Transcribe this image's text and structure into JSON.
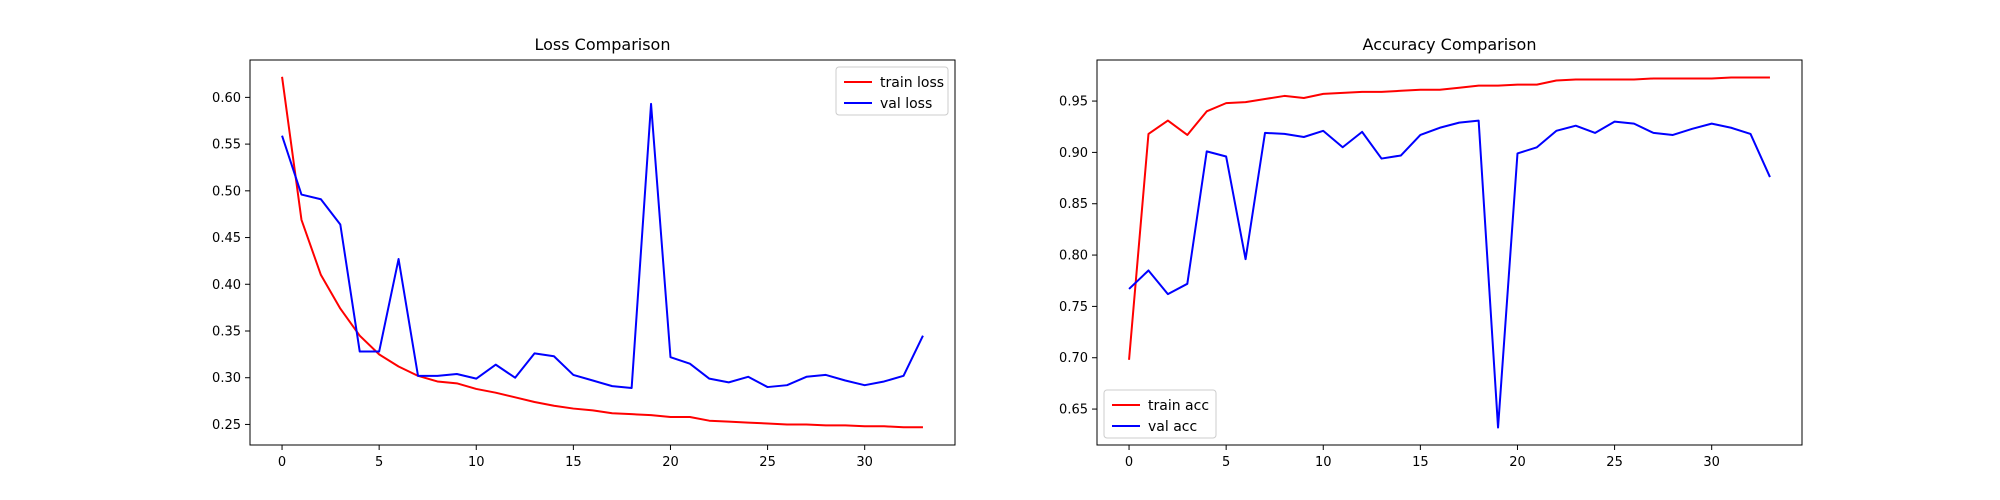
{
  "chart_data": [
    {
      "type": "line",
      "title": "Loss Comparison",
      "xlabel": "",
      "ylabel": "",
      "xlim": [
        -1.65,
        34.65
      ],
      "ylim": [
        0.228,
        0.64
      ],
      "xticks": [
        0,
        5,
        10,
        15,
        20,
        25,
        30
      ],
      "yticks": [
        0.25,
        0.3,
        0.35,
        0.4,
        0.45,
        0.5,
        0.55,
        0.6
      ],
      "ytick_labels": [
        "0.25",
        "0.30",
        "0.35",
        "0.40",
        "0.45",
        "0.50",
        "0.55",
        "0.60"
      ],
      "xtick_labels": [
        "0",
        "5",
        "10",
        "15",
        "20",
        "25",
        "30"
      ],
      "grid": false,
      "legend_loc": "upper right",
      "x": [
        0,
        1,
        2,
        3,
        4,
        5,
        6,
        7,
        8,
        9,
        10,
        11,
        12,
        13,
        14,
        15,
        16,
        17,
        18,
        19,
        20,
        21,
        22,
        23,
        24,
        25,
        26,
        27,
        28,
        29,
        30,
        31,
        32,
        33
      ],
      "series": [
        {
          "name": "train loss",
          "color": "#ff0000",
          "values": [
            0.622,
            0.469,
            0.41,
            0.374,
            0.345,
            0.325,
            0.312,
            0.302,
            0.296,
            0.294,
            0.288,
            0.284,
            0.279,
            0.274,
            0.27,
            0.267,
            0.265,
            0.262,
            0.261,
            0.26,
            0.258,
            0.258,
            0.254,
            0.253,
            0.252,
            0.251,
            0.25,
            0.25,
            0.249,
            0.249,
            0.248,
            0.248,
            0.247,
            0.247
          ]
        },
        {
          "name": "val loss",
          "color": "#0000ff",
          "values": [
            0.559,
            0.496,
            0.491,
            0.464,
            0.328,
            0.328,
            0.427,
            0.302,
            0.302,
            0.304,
            0.299,
            0.314,
            0.3,
            0.326,
            0.323,
            0.303,
            0.297,
            0.291,
            0.289,
            0.593,
            0.322,
            0.315,
            0.299,
            0.295,
            0.301,
            0.29,
            0.292,
            0.301,
            0.303,
            0.297,
            0.292,
            0.296,
            0.302,
            0.345
          ]
        }
      ]
    },
    {
      "type": "line",
      "title": "Accuracy Comparison",
      "xlabel": "",
      "ylabel": "",
      "xlim": [
        -1.65,
        34.65
      ],
      "ylim": [
        0.615,
        0.99
      ],
      "xticks": [
        0,
        5,
        10,
        15,
        20,
        25,
        30
      ],
      "yticks": [
        0.65,
        0.7,
        0.75,
        0.8,
        0.85,
        0.9,
        0.95
      ],
      "ytick_labels": [
        "0.65",
        "0.70",
        "0.75",
        "0.80",
        "0.85",
        "0.90",
        "0.95"
      ],
      "xtick_labels": [
        "0",
        "5",
        "10",
        "15",
        "20",
        "25",
        "30"
      ],
      "grid": false,
      "legend_loc": "lower left",
      "x": [
        0,
        1,
        2,
        3,
        4,
        5,
        6,
        7,
        8,
        9,
        10,
        11,
        12,
        13,
        14,
        15,
        16,
        17,
        18,
        19,
        20,
        21,
        22,
        23,
        24,
        25,
        26,
        27,
        28,
        29,
        30,
        31,
        32,
        33
      ],
      "series": [
        {
          "name": "train acc",
          "color": "#ff0000",
          "values": [
            0.698,
            0.918,
            0.931,
            0.917,
            0.94,
            0.948,
            0.949,
            0.952,
            0.955,
            0.953,
            0.957,
            0.958,
            0.959,
            0.959,
            0.96,
            0.961,
            0.961,
            0.963,
            0.965,
            0.965,
            0.966,
            0.966,
            0.97,
            0.971,
            0.971,
            0.971,
            0.971,
            0.972,
            0.972,
            0.972,
            0.972,
            0.973,
            0.973,
            0.973
          ]
        },
        {
          "name": "val acc",
          "color": "#0000ff",
          "values": [
            0.767,
            0.785,
            0.762,
            0.772,
            0.901,
            0.896,
            0.796,
            0.919,
            0.918,
            0.915,
            0.921,
            0.905,
            0.92,
            0.894,
            0.897,
            0.917,
            0.924,
            0.929,
            0.931,
            0.632,
            0.899,
            0.905,
            0.921,
            0.926,
            0.919,
            0.93,
            0.928,
            0.919,
            0.917,
            0.923,
            0.928,
            0.924,
            0.918,
            0.876
          ]
        }
      ]
    }
  ]
}
